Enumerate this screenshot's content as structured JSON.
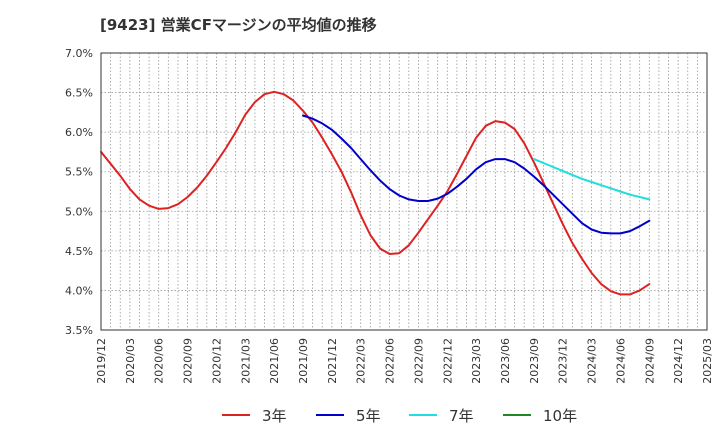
{
  "title": "[9423]  営業CFマージンの平均値の推移",
  "chart_data": {
    "type": "line",
    "title": "[9423]  営業CFマージンの平均値の推移",
    "xlabel": "",
    "ylabel": "",
    "x_ticks": [
      "2019/12",
      "2020/03",
      "2020/06",
      "2020/09",
      "2020/12",
      "2021/03",
      "2021/06",
      "2021/09",
      "2021/12",
      "2022/03",
      "2022/06",
      "2022/09",
      "2022/12",
      "2023/03",
      "2023/06",
      "2023/09",
      "2023/12",
      "2024/03",
      "2024/06",
      "2024/09",
      "2024/12",
      "2025/03"
    ],
    "y_ticks": [
      "7.0%",
      "6.5%",
      "6.0%",
      "5.5%",
      "5.0%",
      "4.5%",
      "4.0%",
      "3.5%"
    ],
    "ylim": [
      3.5,
      7.0
    ],
    "grid": true,
    "legend_position": "bottom",
    "series": [
      {
        "name": "3年",
        "color": "#dd2222",
        "x": [
          "2019/12",
          "2020/01",
          "2020/02",
          "2020/03",
          "2020/04",
          "2020/05",
          "2020/06",
          "2020/07",
          "2020/08",
          "2020/09",
          "2020/10",
          "2020/11",
          "2020/12",
          "2021/01",
          "2021/02",
          "2021/03",
          "2021/04",
          "2021/05",
          "2021/06",
          "2021/07",
          "2021/08",
          "2021/09",
          "2021/10",
          "2021/11",
          "2021/12",
          "2022/01",
          "2022/02",
          "2022/03",
          "2022/04",
          "2022/05",
          "2022/06",
          "2022/07",
          "2022/08",
          "2022/09",
          "2022/10",
          "2022/11",
          "2022/12",
          "2023/01",
          "2023/02",
          "2023/03",
          "2023/04",
          "2023/05",
          "2023/06",
          "2023/07",
          "2023/08",
          "2023/09",
          "2023/10",
          "2023/11",
          "2023/12",
          "2024/01",
          "2024/02",
          "2024/03",
          "2024/04",
          "2024/05",
          "2024/06",
          "2024/07",
          "2024/08",
          "2024/09"
        ],
        "values": [
          5.75,
          5.6,
          5.45,
          5.28,
          5.15,
          5.07,
          5.03,
          5.04,
          5.09,
          5.18,
          5.3,
          5.45,
          5.62,
          5.8,
          6.0,
          6.22,
          6.38,
          6.48,
          6.51,
          6.48,
          6.4,
          6.27,
          6.12,
          5.93,
          5.72,
          5.5,
          5.24,
          4.95,
          4.7,
          4.53,
          4.46,
          4.47,
          4.57,
          4.73,
          4.9,
          5.07,
          5.25,
          5.47,
          5.7,
          5.93,
          6.08,
          6.14,
          6.12,
          6.04,
          5.86,
          5.62,
          5.36,
          5.1,
          4.84,
          4.6,
          4.4,
          4.22,
          4.08,
          3.99,
          3.95,
          3.95,
          4.0,
          4.08
        ]
      },
      {
        "name": "5年",
        "color": "#0000cc",
        "x": [
          "2021/09",
          "2021/10",
          "2021/11",
          "2021/12",
          "2022/01",
          "2022/02",
          "2022/03",
          "2022/04",
          "2022/05",
          "2022/06",
          "2022/07",
          "2022/08",
          "2022/09",
          "2022/10",
          "2022/11",
          "2022/12",
          "2023/01",
          "2023/02",
          "2023/03",
          "2023/04",
          "2023/05",
          "2023/06",
          "2023/07",
          "2023/08",
          "2023/09",
          "2023/10",
          "2023/11",
          "2023/12",
          "2024/01",
          "2024/02",
          "2024/03",
          "2024/04",
          "2024/05",
          "2024/06",
          "2024/07",
          "2024/08",
          "2024/09"
        ],
        "values": [
          6.21,
          6.17,
          6.11,
          6.03,
          5.92,
          5.8,
          5.66,
          5.52,
          5.39,
          5.28,
          5.2,
          5.15,
          5.13,
          5.13,
          5.16,
          5.22,
          5.31,
          5.41,
          5.53,
          5.62,
          5.66,
          5.66,
          5.62,
          5.54,
          5.44,
          5.33,
          5.21,
          5.09,
          4.97,
          4.85,
          4.77,
          4.73,
          4.72,
          4.72,
          4.75,
          4.81,
          4.88
        ]
      },
      {
        "name": "7年",
        "color": "#22dddd",
        "x": [
          "2023/09",
          "2023/10",
          "2023/11",
          "2023/12",
          "2024/01",
          "2024/02",
          "2024/03",
          "2024/04",
          "2024/05",
          "2024/06",
          "2024/07",
          "2024/08",
          "2024/09"
        ],
        "values": [
          5.66,
          5.61,
          5.56,
          5.51,
          5.46,
          5.41,
          5.37,
          5.33,
          5.29,
          5.25,
          5.21,
          5.18,
          5.15
        ]
      },
      {
        "name": "10年",
        "color": "#228822",
        "x": [],
        "values": []
      }
    ]
  }
}
